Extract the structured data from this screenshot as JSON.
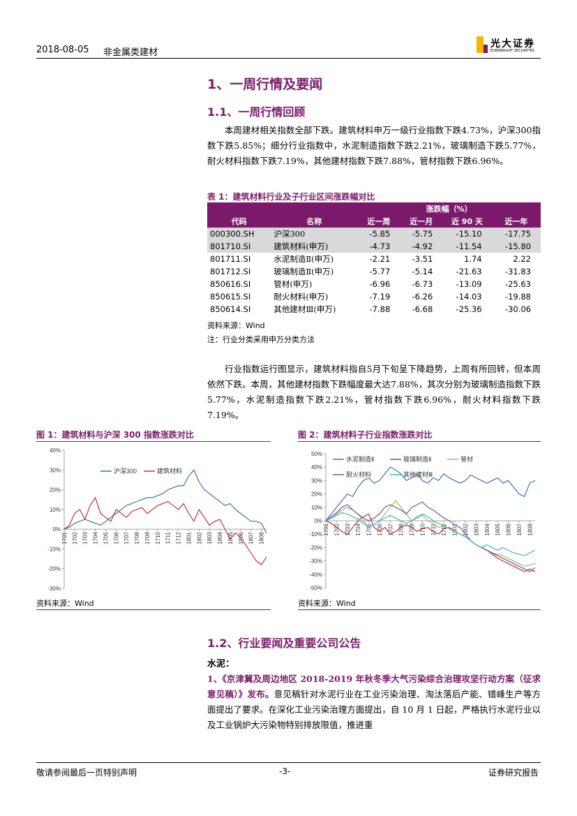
{
  "header": {
    "date": "2018-08-05",
    "sector": "非金属类建材",
    "logo": "光大证券",
    "logo_en": "EVERBRIGHT SECURITIES"
  },
  "section1": {
    "title": "1、一周行情及要闻"
  },
  "section11": {
    "title": "1.1、一周行情回顾",
    "para1": "本周建材相关指数全部下跌。建筑材料申万一级行业指数下跌4.73%，沪深300指数下跌5.85%；细分行业指数中，水泥制造指数下跌2.21%，玻璃制造下跌5.77%，耐火材料指数下跌7.19%，其他建材指数下跌7.88%，管材指数下跌6.96%。",
    "para2": "行业指数运行图显示，建筑材料指自5月下旬呈下降趋势，上周有所回转，但本周依然下跌。本周，其他建材指数下跌幅度最大达7.88%，其次分别为玻璃制造指数下跌5.77%，水泥制造指数下跌2.21%，管材指数下跌6.96%，耐火材料指数下跌7.19%。"
  },
  "table": {
    "caption": "表 1：建筑材料行业及子行业区间涨跌幅对比",
    "group_header": "涨跌幅（%）",
    "columns": [
      "代码",
      "名称",
      "近一周",
      "近一月",
      "近 90 天",
      "近一年"
    ],
    "rows": [
      [
        "000300.SH",
        "沪深300",
        "-5.85",
        "-5.75",
        "-15.10",
        "-17.75"
      ],
      [
        "801710.SI",
        "建筑材料(申万)",
        "-4.73",
        "-4.92",
        "-11.54",
        "-15.80"
      ],
      [
        "801711.SI",
        "水泥制造Ⅱ(申万)",
        "-2.21",
        "-3.51",
        "1.74",
        "2.22"
      ],
      [
        "801712.SI",
        "玻璃制造Ⅱ(申万)",
        "-5.77",
        "-5.14",
        "-21.63",
        "-31.83"
      ],
      [
        "850616.SI",
        "管材(申万)",
        "-6.96",
        "-6.73",
        "-13.09",
        "-25.63"
      ],
      [
        "850615.SI",
        "耐火材料(申万)",
        "-7.19",
        "-6.26",
        "-14.03",
        "-19.88"
      ],
      [
        "850614.SI",
        "其他建材Ⅲ(申万)",
        "-7.88",
        "-6.68",
        "-25.36",
        "-30.06"
      ]
    ],
    "source": "资料来源：Wind",
    "note": "注：行业分类采用申万分类方法"
  },
  "chart_data": [
    {
      "type": "line",
      "title": "图 1：建筑材料与沪深 300 指数涨跌对比",
      "source": "资料来源：Wind",
      "categories": [
        "1701",
        null,
        "1702",
        null,
        "1703",
        null,
        "1704",
        null,
        "1705",
        null,
        "1706",
        null,
        "1707",
        null,
        "1708",
        null,
        "1709",
        null,
        "1710",
        null,
        "1711",
        null,
        "1712",
        null,
        "1801",
        null,
        "1802",
        null,
        "1803",
        null,
        "1804",
        null,
        "1805",
        null,
        "1806",
        null,
        "1807",
        null,
        "1808",
        null
      ],
      "ylim": [
        -30,
        40
      ],
      "yticks": [
        {
          "value": -30,
          "label": "-30%"
        },
        {
          "value": -20,
          "label": "-20%"
        },
        {
          "value": -10,
          "label": "-10%"
        },
        {
          "value": 0,
          "label": "0%"
        },
        {
          "value": 10,
          "label": "10%"
        },
        {
          "value": 20,
          "label": "20%"
        },
        {
          "value": 30,
          "label": "30%"
        },
        {
          "value": 40,
          "label": "40%"
        }
      ],
      "grid": false,
      "series": [
        {
          "name": "沪深300",
          "color": "#3f6fb5",
          "values": [
            0,
            1,
            3,
            4,
            5,
            4,
            3,
            2,
            4,
            6,
            8,
            10,
            12,
            13,
            14,
            15,
            16,
            16,
            17,
            18,
            20,
            21,
            22,
            22,
            27,
            30,
            24,
            20,
            18,
            16,
            14,
            12,
            13,
            10,
            8,
            6,
            4,
            4,
            3,
            -2
          ]
        },
        {
          "name": "建筑材料",
          "color": "#c8322a",
          "values": [
            0,
            2,
            8,
            10,
            5,
            12,
            16,
            8,
            6,
            4,
            10,
            8,
            6,
            9,
            10,
            11,
            8,
            10,
            12,
            13,
            14,
            12,
            10,
            13,
            8,
            4,
            10,
            6,
            2,
            4,
            5,
            0,
            -5,
            -2,
            -4,
            -8,
            -12,
            -16,
            -18,
            -14
          ]
        }
      ]
    },
    {
      "type": "line",
      "title": "图 2：建筑材料子行业指数涨跌对比",
      "source": "资料来源：Wind",
      "categories": [
        "1701",
        null,
        "1702",
        null,
        "1703",
        null,
        "1704",
        null,
        "1705",
        null,
        "1706",
        null,
        "1707",
        null,
        "1708",
        null,
        "1709",
        null,
        "1710",
        null,
        "1711",
        null,
        "1712",
        null,
        "1801",
        null,
        "1802",
        null,
        "1803",
        null,
        "1804",
        null,
        "1805",
        null,
        "1806",
        null,
        "1807",
        null,
        "1808",
        null
      ],
      "ylim": [
        -50,
        50
      ],
      "yticks": [
        {
          "value": -50,
          "label": "-50%"
        },
        {
          "value": -40,
          "label": "-40%"
        },
        {
          "value": -30,
          "label": "-30%"
        },
        {
          "value": -20,
          "label": "-20%"
        },
        {
          "value": -10,
          "label": "-10%"
        },
        {
          "value": 0,
          "label": "0%"
        },
        {
          "value": 10,
          "label": "10%"
        },
        {
          "value": 20,
          "label": "20%"
        },
        {
          "value": 30,
          "label": "30%"
        },
        {
          "value": 40,
          "label": "40%"
        },
        {
          "value": 50,
          "label": "50%"
        }
      ],
      "grid": false,
      "series": [
        {
          "name": "水泥制造Ⅱ",
          "color": "#3f6fb5",
          "values": [
            0,
            5,
            10,
            15,
            20,
            18,
            25,
            30,
            32,
            28,
            30,
            35,
            40,
            38,
            35,
            30,
            32,
            35,
            30,
            28,
            32,
            30,
            35,
            32,
            30,
            28,
            30,
            34,
            32,
            30,
            28,
            30,
            32,
            28,
            30,
            25,
            20,
            18,
            28,
            30
          ]
        },
        {
          "name": "玻璃制造Ⅱ",
          "color": "#b8302a",
          "values": [
            0,
            -2,
            -5,
            -8,
            -10,
            -5,
            0,
            3,
            5,
            -5,
            -8,
            -5,
            -10,
            -8,
            -5,
            -3,
            -5,
            -8,
            -6,
            -5,
            -8,
            -10,
            -6,
            -5,
            -8,
            -10,
            -12,
            -15,
            -18,
            -20,
            -22,
            -25,
            -28,
            -30,
            -32,
            -34,
            -36,
            -38,
            -36,
            -38
          ]
        },
        {
          "name": "管材",
          "color": "#9bbb59",
          "values": [
            0,
            2,
            5,
            8,
            10,
            8,
            5,
            0,
            -5,
            -3,
            0,
            5,
            10,
            15,
            10,
            5,
            0,
            2,
            4,
            0,
            -2,
            -5,
            -4,
            -6,
            -8,
            -10,
            -12,
            -15,
            -18,
            -20,
            -22,
            -24,
            -25,
            -26,
            -28,
            -30,
            -32,
            -34,
            -33,
            -32
          ]
        },
        {
          "name": "耐火材料",
          "color": "#7b4fa0",
          "values": [
            0,
            3,
            6,
            10,
            12,
            8,
            5,
            2,
            0,
            2,
            5,
            10,
            12,
            10,
            8,
            5,
            10,
            12,
            14,
            10,
            8,
            5,
            2,
            0,
            -3,
            -5,
            -10,
            -15,
            -18,
            -20,
            -22,
            -24,
            -26,
            -28,
            -30,
            -32,
            -34,
            -36,
            -38,
            -35
          ]
        },
        {
          "name": "其他建材Ⅲ",
          "color": "#3fb4c8",
          "values": [
            0,
            2,
            4,
            6,
            5,
            3,
            1,
            -2,
            -5,
            -3,
            0,
            2,
            4,
            2,
            0,
            -2,
            0,
            3,
            5,
            3,
            0,
            -2,
            -4,
            -6,
            -8,
            -10,
            -12,
            -15,
            -18,
            -20,
            -18,
            -20,
            -22,
            -20,
            -22,
            -24,
            -25,
            -26,
            -24,
            -22
          ]
        }
      ]
    }
  ],
  "section12": {
    "title": "1.2、行业要闻及重要公司公告",
    "subhead": "水泥：",
    "news_title": "1、《京津冀及周边地区 2018-2019 年秋冬季大气污染综合治理攻坚行动方案（征求意见稿）》发布。",
    "news_body": "意见稿针对水泥行业在工业污染治理、淘汰落后产能、错峰生产等方面提出了要求。在深化工业污染治理方面提出，自 10 月 1 日起，严格执行水泥行业以及工业锅炉大污染物特别排放限值，推进重"
  },
  "footer": {
    "left": "敬请参阅最后一页特别声明",
    "page": "-3-",
    "right": "证券研究报告"
  }
}
